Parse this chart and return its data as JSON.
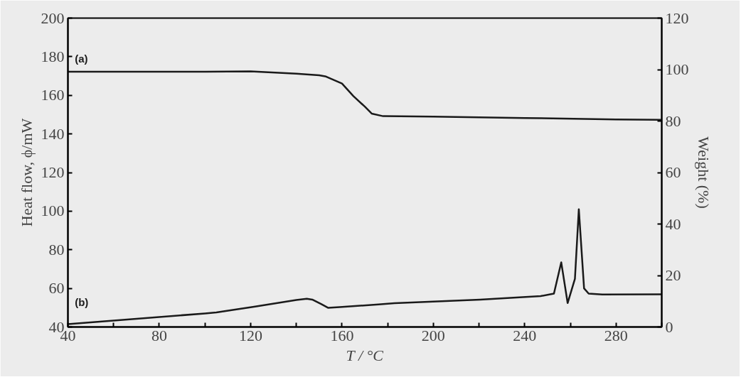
{
  "chart_data": {
    "type": "line",
    "xlabel": "T / °C",
    "ylabel": "Heat flow, ϕ/mW",
    "y2label": "Weight (%)",
    "xlim": [
      40,
      300
    ],
    "ylim": [
      40,
      200
    ],
    "y2lim": [
      0,
      120
    ],
    "xticks": [
      40,
      {
        "value": 60,
        "label": null
      },
      80,
      {
        "value": 100,
        "label": null
      },
      120,
      {
        "value": 140,
        "label": null
      },
      160,
      {
        "value": 180,
        "label": null
      },
      200,
      {
        "value": 220,
        "label": null
      },
      240,
      {
        "value": 260,
        "label": null
      },
      280,
      {
        "value": 300,
        "label": null
      }
    ],
    "yticks": [
      40,
      60,
      80,
      100,
      120,
      140,
      160,
      180,
      200
    ],
    "y2ticks": [
      0,
      20,
      40,
      60,
      80,
      100,
      120
    ],
    "grid": false,
    "marker": "none",
    "line_style": "solid",
    "series": [
      {
        "name": "(a)",
        "color": "#1a1a1a",
        "axis": "y2",
        "x": [
          40,
          100,
          120,
          140,
          150,
          153,
          160,
          165,
          170,
          173,
          178,
          200,
          240,
          280,
          300
        ],
        "values": [
          99.2,
          99.2,
          99.3,
          98.4,
          97.8,
          97.3,
          94.6,
          89.7,
          85.6,
          82.9,
          81.9,
          81.7,
          81.2,
          80.6,
          80.5
        ]
      },
      {
        "name": "(b)",
        "color": "#1a1a1a",
        "axis": "y",
        "x": [
          40,
          100,
          105,
          122,
          140,
          144.6,
          147,
          151,
          154,
          159,
          176,
          183,
          220.5,
          247,
          252.8,
          256,
          258.8,
          262,
          263.7,
          266,
          268,
          274,
          300
        ],
        "values": [
          41.5,
          47,
          47.5,
          50.6,
          54,
          54.6,
          54.2,
          51.8,
          49.9,
          50.3,
          51.7,
          52.3,
          54.2,
          56,
          57.3,
          73.5,
          52.4,
          65,
          101,
          60,
          57.3,
          56.8,
          56.9
        ]
      }
    ]
  }
}
